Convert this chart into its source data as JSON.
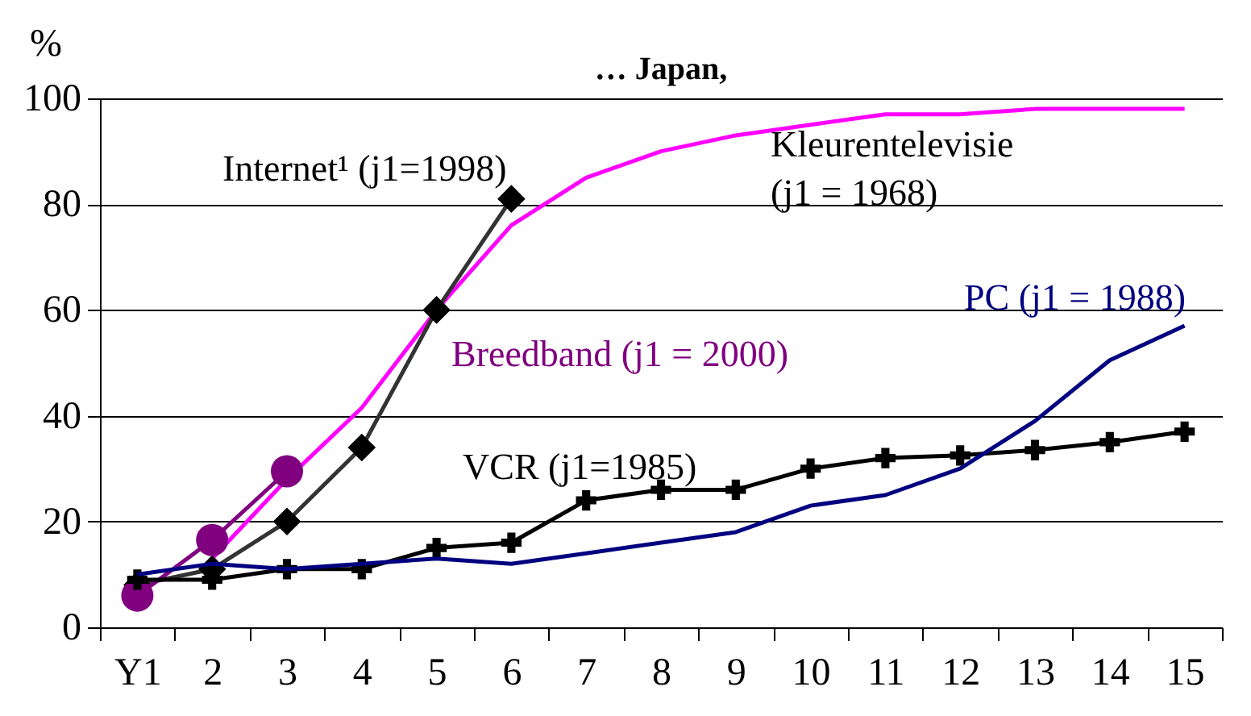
{
  "chart_data": {
    "type": "line",
    "title": "… Japan,",
    "ylabel": "%",
    "categories": [
      "Y1",
      "2",
      "3",
      "4",
      "5",
      "6",
      "7",
      "8",
      "9",
      "10",
      "11",
      "12",
      "13",
      "14",
      "15"
    ],
    "ylim": [
      0,
      100
    ],
    "yticks": [
      0,
      20,
      40,
      60,
      80,
      100
    ],
    "grid": "y",
    "legend": false,
    "series": [
      {
        "name": "Kleurentelevisie (j1 = 1968)",
        "color": "#ff00ff",
        "marker": "none",
        "values": [
          null,
          13,
          28,
          41.5,
          60,
          76,
          85,
          90,
          93,
          95,
          97,
          97,
          98,
          98,
          98
        ]
      },
      {
        "name": "Internet¹ (j1=1998)",
        "color": "#333333",
        "marker": "diamond",
        "values": [
          8,
          11,
          20,
          34,
          60,
          81,
          null,
          null,
          null,
          null,
          null,
          null,
          null,
          null,
          null
        ]
      },
      {
        "name": "Breedband (j1 = 2000)",
        "color": "#800080",
        "marker": "circle",
        "values": [
          6,
          16.5,
          29.5,
          null,
          null,
          null,
          null,
          null,
          null,
          null,
          null,
          null,
          null,
          null,
          null
        ]
      },
      {
        "name": "VCR (j1=1985)",
        "color": "#000000",
        "marker": "cross",
        "values": [
          9,
          9,
          11,
          11,
          15,
          16,
          24,
          26,
          26,
          30,
          32,
          32.5,
          33.5,
          35,
          37
        ]
      },
      {
        "name": "PC (j1 = 1988)",
        "color": "#000080",
        "marker": "none",
        "values": [
          10,
          12,
          11,
          12,
          13,
          12,
          14,
          16,
          18,
          23,
          25,
          30,
          39,
          50.5,
          57
        ]
      }
    ]
  }
}
